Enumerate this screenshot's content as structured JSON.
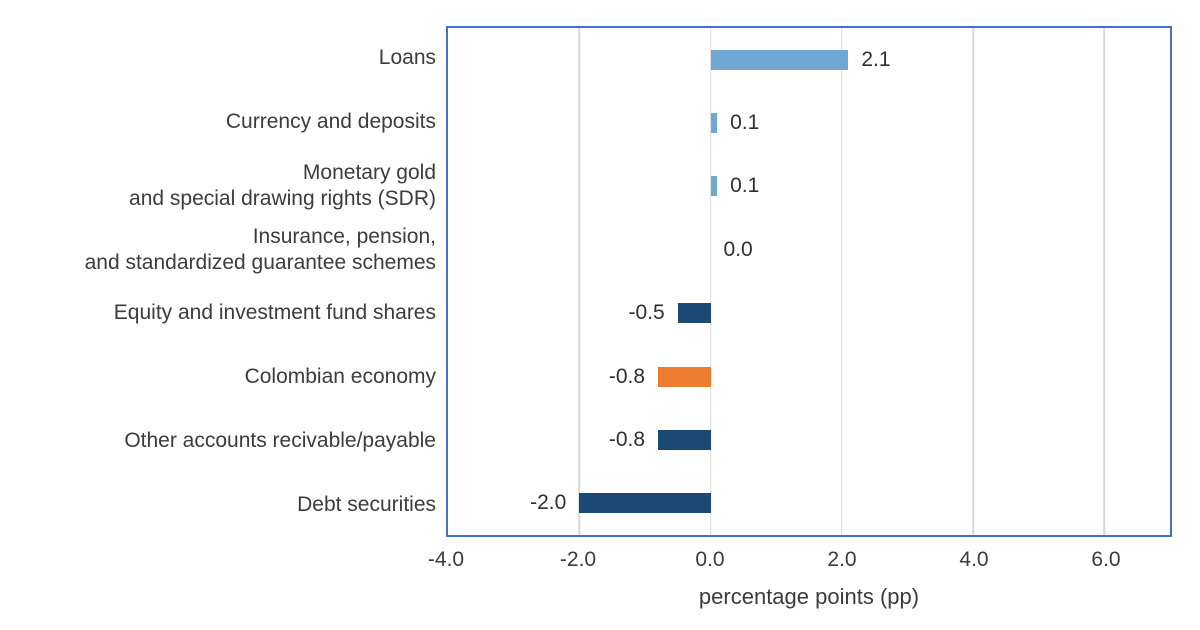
{
  "chart_data": {
    "type": "bar",
    "orientation": "horizontal",
    "categories": [
      "Loans",
      "Currency and deposits",
      "Monetary gold\nand special drawing rights (SDR)",
      "Insurance, pension,\nand standardized guarantee schemes",
      "Equity and investment fund shares",
      "Colombian economy",
      "Other accounts recivable/payable",
      "Debt securities"
    ],
    "values": [
      2.1,
      0.1,
      0.1,
      0.0,
      -0.5,
      -0.8,
      -0.8,
      -2.0
    ],
    "value_labels": [
      "2.1",
      "0.1",
      "0.1",
      "0.0",
      "-0.5",
      "-0.8",
      "-0.8",
      "-2.0"
    ],
    "bar_color_keys": [
      "positive",
      "positive",
      "positive",
      "positive",
      "negative",
      "highlight",
      "negative",
      "negative"
    ],
    "colors": {
      "positive": "#6ea6d4",
      "negative": "#1b4973",
      "highlight": "#ec7d2e",
      "border": "#4472c4",
      "gridline": "#d9d9d9",
      "text": "#3c3c3c"
    },
    "title": "",
    "xlabel": "percentage points (pp)",
    "ylabel": "",
    "xlim": [
      -4.0,
      7.0
    ],
    "xticks": [
      -4.0,
      -2.0,
      0.0,
      2.0,
      4.0,
      6.0
    ],
    "xtick_labels": [
      "-4.0",
      "-2.0",
      "0.0",
      "2.0",
      "4.0",
      "6.0"
    ],
    "grid": "vertical",
    "legend": "none"
  }
}
